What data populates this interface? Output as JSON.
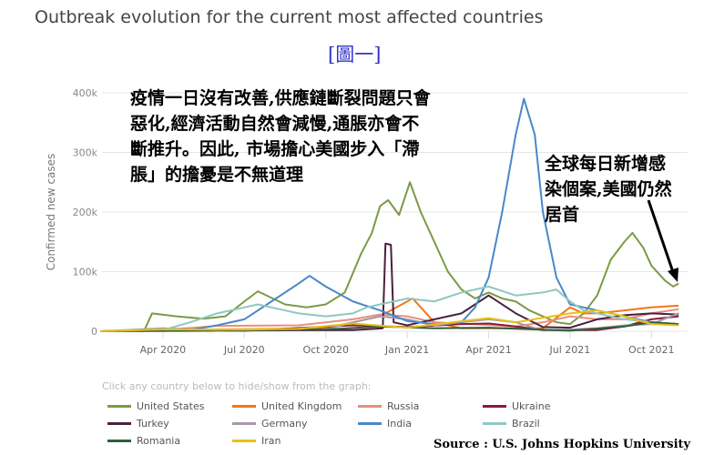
{
  "header": {
    "title": "Outbreak evolution for the current most affected countries",
    "figure_label": "[圖一]"
  },
  "annotations": {
    "left": "疫情一日沒有改善,供應鏈斷裂問題只會\n惡化,經濟活動自然會減慢,通脹亦會不\n斷推升。因此, 市場擔心美國步入「滯\n脹」的擔憂是不無道理",
    "right": "全球每日新增感\n染個案,美國仍然\n居首"
  },
  "legend_hint": "Click any country below to hide/show from the graph:",
  "source": "Source : U.S. Johns Hopkins University",
  "chart_data": {
    "type": "line",
    "ylabel": "Confirmed new cases",
    "ylim": [
      0,
      400000
    ],
    "yticks": [
      {
        "v": 0,
        "label": "0"
      },
      {
        "v": 100000,
        "label": "100k"
      },
      {
        "v": 200000,
        "label": "200k"
      },
      {
        "v": 300000,
        "label": "300k"
      },
      {
        "v": 400000,
        "label": "400k"
      }
    ],
    "xticks": [
      {
        "m": 3,
        "label": "Apr 2020"
      },
      {
        "m": 6,
        "label": "Jul 2020"
      },
      {
        "m": 9,
        "label": "Oct 2020"
      },
      {
        "m": 12,
        "label": "Jan 2021"
      },
      {
        "m": 15,
        "label": "Apr 2021"
      },
      {
        "m": 18,
        "label": "Jul 2021"
      },
      {
        "m": 21,
        "label": "Oct 2021"
      }
    ],
    "x_unit": "months since Jan 2020",
    "series": [
      {
        "name": "United States",
        "color": "#7c9a45",
        "points": [
          [
            0.7,
            0
          ],
          [
            2.3,
            0
          ],
          [
            2.6,
            30000
          ],
          [
            3.5,
            25000
          ],
          [
            4.5,
            21000
          ],
          [
            5.3,
            25000
          ],
          [
            6,
            50000
          ],
          [
            6.5,
            67000
          ],
          [
            7.5,
            45000
          ],
          [
            8.3,
            40000
          ],
          [
            9,
            45000
          ],
          [
            9.7,
            65000
          ],
          [
            10.3,
            130000
          ],
          [
            10.7,
            165000
          ],
          [
            11,
            210000
          ],
          [
            11.3,
            220000
          ],
          [
            11.7,
            195000
          ],
          [
            12.1,
            250000
          ],
          [
            12.5,
            200000
          ],
          [
            13,
            150000
          ],
          [
            13.5,
            100000
          ],
          [
            14,
            70000
          ],
          [
            14.5,
            55000
          ],
          [
            15,
            65000
          ],
          [
            15.5,
            55000
          ],
          [
            16,
            50000
          ],
          [
            16.5,
            35000
          ],
          [
            17,
            25000
          ],
          [
            17.5,
            15000
          ],
          [
            18,
            12000
          ],
          [
            18.5,
            30000
          ],
          [
            19,
            60000
          ],
          [
            19.5,
            120000
          ],
          [
            20,
            150000
          ],
          [
            20.3,
            165000
          ],
          [
            20.7,
            140000
          ],
          [
            21,
            110000
          ],
          [
            21.5,
            85000
          ],
          [
            21.8,
            75000
          ],
          [
            22,
            80000
          ]
        ]
      },
      {
        "name": "United Kingdom",
        "color": "#f07818",
        "points": [
          [
            0.7,
            0
          ],
          [
            3,
            2000
          ],
          [
            9,
            5000
          ],
          [
            10,
            15000
          ],
          [
            11,
            25000
          ],
          [
            12.2,
            55000
          ],
          [
            12.7,
            30000
          ],
          [
            13,
            15000
          ],
          [
            14,
            5000
          ],
          [
            17,
            5000
          ],
          [
            18,
            40000
          ],
          [
            18.5,
            30000
          ],
          [
            19,
            30000
          ],
          [
            20,
            35000
          ],
          [
            21,
            40000
          ],
          [
            22,
            43000
          ]
        ]
      },
      {
        "name": "Russia",
        "color": "#e8907c",
        "points": [
          [
            0.7,
            0
          ],
          [
            3,
            2000
          ],
          [
            5,
            9000
          ],
          [
            8,
            10000
          ],
          [
            10,
            20000
          ],
          [
            11,
            28000
          ],
          [
            12,
            25000
          ],
          [
            13,
            15000
          ],
          [
            16,
            8000
          ],
          [
            17,
            15000
          ],
          [
            18,
            25000
          ],
          [
            19,
            20000
          ],
          [
            20,
            20000
          ],
          [
            21,
            30000
          ],
          [
            22,
            37000
          ]
        ]
      },
      {
        "name": "Ukraine",
        "color": "#8b1a3a",
        "points": [
          [
            0.7,
            0
          ],
          [
            6,
            1000
          ],
          [
            10,
            10000
          ],
          [
            12,
            7000
          ],
          [
            14,
            12000
          ],
          [
            15,
            13000
          ],
          [
            16,
            8000
          ],
          [
            17,
            2000
          ],
          [
            19,
            2000
          ],
          [
            20,
            8000
          ],
          [
            21,
            20000
          ],
          [
            22,
            25000
          ]
        ]
      },
      {
        "name": "Turkey",
        "color": "#4a2040",
        "points": [
          [
            0.7,
            0
          ],
          [
            3.5,
            4000
          ],
          [
            5,
            1000
          ],
          [
            10,
            2000
          ],
          [
            11.1,
            5000
          ],
          [
            11.2,
            147000
          ],
          [
            11.4,
            145000
          ],
          [
            11.5,
            15000
          ],
          [
            12,
            10000
          ],
          [
            14,
            30000
          ],
          [
            15,
            60000
          ],
          [
            16,
            30000
          ],
          [
            17,
            7000
          ],
          [
            18,
            6000
          ],
          [
            19,
            20000
          ],
          [
            20,
            27000
          ],
          [
            21,
            30000
          ],
          [
            22,
            28000
          ]
        ]
      },
      {
        "name": "Germany",
        "color": "#a49aa8",
        "points": [
          [
            0.7,
            0
          ],
          [
            3,
            5000
          ],
          [
            5,
            1000
          ],
          [
            9,
            3000
          ],
          [
            10,
            15000
          ],
          [
            11,
            25000
          ],
          [
            12,
            20000
          ],
          [
            13,
            10000
          ],
          [
            15,
            20000
          ],
          [
            16,
            15000
          ],
          [
            17,
            1000
          ],
          [
            19,
            5000
          ],
          [
            20,
            10000
          ],
          [
            21,
            12000
          ],
          [
            22,
            30000
          ]
        ]
      },
      {
        "name": "India",
        "color": "#4a88c8",
        "points": [
          [
            0.7,
            0
          ],
          [
            4,
            2000
          ],
          [
            5,
            10000
          ],
          [
            6,
            20000
          ],
          [
            7,
            50000
          ],
          [
            8,
            80000
          ],
          [
            8.4,
            93000
          ],
          [
            9,
            75000
          ],
          [
            10,
            50000
          ],
          [
            11,
            35000
          ],
          [
            12,
            17000
          ],
          [
            13,
            12000
          ],
          [
            14,
            15000
          ],
          [
            14.5,
            40000
          ],
          [
            15,
            90000
          ],
          [
            15.5,
            200000
          ],
          [
            16,
            330000
          ],
          [
            16.3,
            390000
          ],
          [
            16.7,
            330000
          ],
          [
            17,
            200000
          ],
          [
            17.5,
            90000
          ],
          [
            18,
            45000
          ],
          [
            18.5,
            40000
          ],
          [
            19,
            35000
          ],
          [
            19.5,
            30000
          ],
          [
            20,
            25000
          ],
          [
            21,
            15000
          ],
          [
            22,
            12000
          ]
        ]
      },
      {
        "name": "Brazil",
        "color": "#8fc8c0",
        "points": [
          [
            0.7,
            0
          ],
          [
            2,
            0
          ],
          [
            3,
            2000
          ],
          [
            4,
            15000
          ],
          [
            5,
            30000
          ],
          [
            6,
            40000
          ],
          [
            6.5,
            45000
          ],
          [
            7,
            40000
          ],
          [
            8,
            30000
          ],
          [
            9,
            25000
          ],
          [
            10,
            30000
          ],
          [
            10.5,
            40000
          ],
          [
            11,
            45000
          ],
          [
            12,
            55000
          ],
          [
            13,
            50000
          ],
          [
            14,
            65000
          ],
          [
            14.5,
            70000
          ],
          [
            15,
            75000
          ],
          [
            16,
            60000
          ],
          [
            17,
            65000
          ],
          [
            17.5,
            70000
          ],
          [
            18,
            50000
          ],
          [
            18.5,
            35000
          ],
          [
            19,
            30000
          ],
          [
            20,
            20000
          ],
          [
            21,
            15000
          ],
          [
            22,
            12000
          ]
        ]
      },
      {
        "name": "Romania",
        "color": "#2e5e3e",
        "points": [
          [
            0.7,
            0
          ],
          [
            9,
            3000
          ],
          [
            11,
            8000
          ],
          [
            13,
            5000
          ],
          [
            15,
            6000
          ],
          [
            18,
            1000
          ],
          [
            20,
            8000
          ],
          [
            21,
            15000
          ],
          [
            22,
            12000
          ]
        ]
      },
      {
        "name": "Iran",
        "color": "#e8c018",
        "points": [
          [
            0.7,
            0
          ],
          [
            3,
            3000
          ],
          [
            5,
            2500
          ],
          [
            8,
            4000
          ],
          [
            10,
            13000
          ],
          [
            12,
            6000
          ],
          [
            15,
            22000
          ],
          [
            16,
            15000
          ],
          [
            18,
            30000
          ],
          [
            19,
            35000
          ],
          [
            20,
            25000
          ],
          [
            21,
            12000
          ],
          [
            22,
            10000
          ]
        ]
      }
    ]
  }
}
